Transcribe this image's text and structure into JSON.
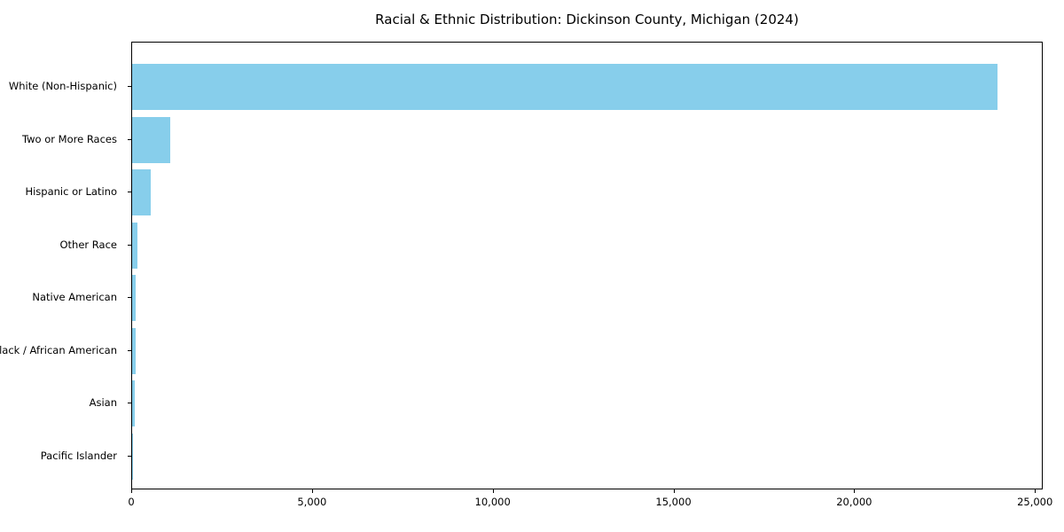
{
  "chart_data": {
    "type": "bar",
    "orientation": "horizontal",
    "title": "Racial & Ethnic Distribution: Dickinson County, Michigan (2024)",
    "xlabel": "",
    "ylabel": "",
    "categories": [
      "White (Non-Hispanic)",
      "Two or More Races",
      "Hispanic or Latino",
      "Other Race",
      "Native American",
      "Black / African American",
      "Asian",
      "Pacific Islander"
    ],
    "values": [
      23940,
      1050,
      520,
      135,
      105,
      90,
      85,
      10
    ],
    "xlim": [
      0,
      25000
    ],
    "x_tick_values": [
      0,
      5000,
      10000,
      15000,
      20000,
      25000
    ],
    "x_tick_labels": [
      "0",
      "5,000",
      "10,000",
      "15,000",
      "20,000",
      "25,000"
    ],
    "bar_color": "#87CEEB",
    "grid": false,
    "legend": "none",
    "background_color": "#ffffff",
    "axis_color": "#000000"
  }
}
